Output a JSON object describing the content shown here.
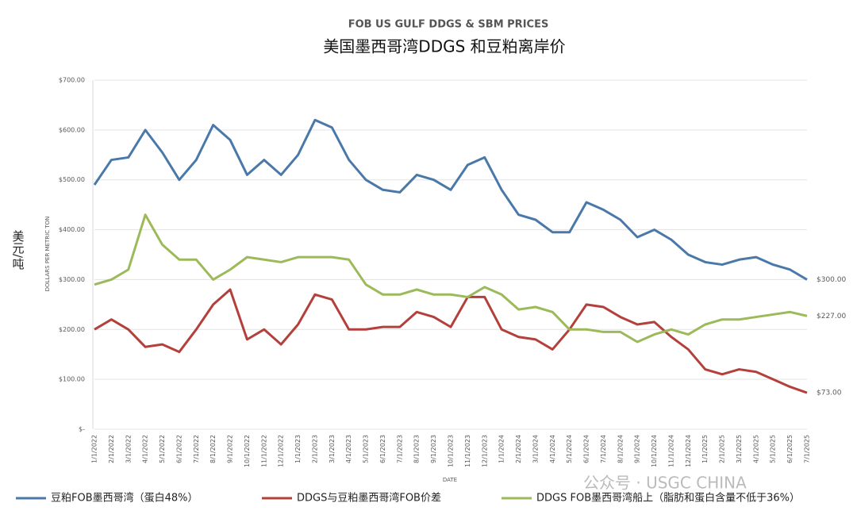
{
  "chart_data": {
    "type": "line",
    "title": "FOB US GULF DDGS & SBM PRICES",
    "subtitle": "美国墨西哥湾DDGS 和豆粕离岸价",
    "y_axis_label": "DOLLARS PER METRIC TON",
    "y_unit_label": "美元/吨",
    "x_axis_label": "DATE",
    "watermark": "公众号 · USGC CHINA",
    "categories": [
      "1/1/2022",
      "2/1/2022",
      "3/1/2022",
      "4/1/2022",
      "5/1/2022",
      "6/1/2022",
      "7/1/2022",
      "8/1/2022",
      "9/1/2022",
      "10/1/2022",
      "11/1/2022",
      "12/1/2022",
      "1/1/2023",
      "2/1/2023",
      "3/1/2023",
      "4/1/2023",
      "5/1/2023",
      "6/1/2023",
      "7/1/2023",
      "8/1/2023",
      "9/1/2023",
      "10/1/2023",
      "11/1/2023",
      "12/1/2023",
      "1/1/2024",
      "2/1/2024",
      "3/1/2024",
      "4/1/2024",
      "5/1/2024",
      "6/1/2024",
      "7/1/2024",
      "8/1/2024",
      "9/1/2024",
      "10/1/2024",
      "11/1/2024",
      "12/1/2024",
      "1/1/2025",
      "2/1/2025",
      "3/1/2025",
      "4/1/2025",
      "5/1/2025",
      "6/1/2025",
      "7/1/2025"
    ],
    "series": [
      {
        "name": "豆粕FOB墨西哥湾（蛋白48%）",
        "color": "#4a78a8",
        "end_label": "$300.00",
        "values": [
          490,
          540,
          545,
          600,
          555,
          500,
          540,
          610,
          580,
          510,
          540,
          510,
          550,
          620,
          605,
          540,
          500,
          480,
          475,
          510,
          500,
          480,
          530,
          545,
          480,
          430,
          420,
          395,
          395,
          455,
          440,
          420,
          385,
          400,
          380,
          350,
          335,
          330,
          340,
          345,
          330,
          320,
          300
        ]
      },
      {
        "name": "DDGS与豆粕墨西哥湾FOB价差",
        "color": "#b3403a",
        "end_label": "$73.00",
        "values": [
          200,
          220,
          200,
          165,
          170,
          155,
          200,
          250,
          280,
          180,
          200,
          170,
          210,
          270,
          260,
          200,
          200,
          205,
          205,
          235,
          225,
          205,
          265,
          265,
          200,
          185,
          180,
          160,
          200,
          250,
          245,
          225,
          210,
          215,
          185,
          160,
          120,
          110,
          120,
          115,
          100,
          85,
          73
        ]
      },
      {
        "name": "DDGS FOB墨西哥湾船上（脂肪和蛋白含量不低于36%）",
        "color": "#9cba5a",
        "end_label": "$227.00",
        "values": [
          290,
          300,
          320,
          430,
          370,
          340,
          340,
          300,
          320,
          345,
          340,
          335,
          345,
          345,
          345,
          340,
          290,
          270,
          270,
          280,
          270,
          270,
          265,
          285,
          270,
          240,
          245,
          235,
          200,
          200,
          195,
          195,
          175,
          190,
          200,
          190,
          210,
          220,
          220,
          225,
          230,
          235,
          227
        ]
      }
    ],
    "ylim": [
      0,
      700
    ],
    "yticks": [
      {
        "value": 0,
        "label": "$-"
      },
      {
        "value": 100,
        "label": "$100.00"
      },
      {
        "value": 200,
        "label": "$200.00"
      },
      {
        "value": 300,
        "label": "$300.00"
      },
      {
        "value": 400,
        "label": "$400.00"
      },
      {
        "value": 500,
        "label": "$500.00"
      },
      {
        "value": 600,
        "label": "$600.00"
      },
      {
        "value": 700,
        "label": "$700.00"
      }
    ],
    "grid": true
  }
}
